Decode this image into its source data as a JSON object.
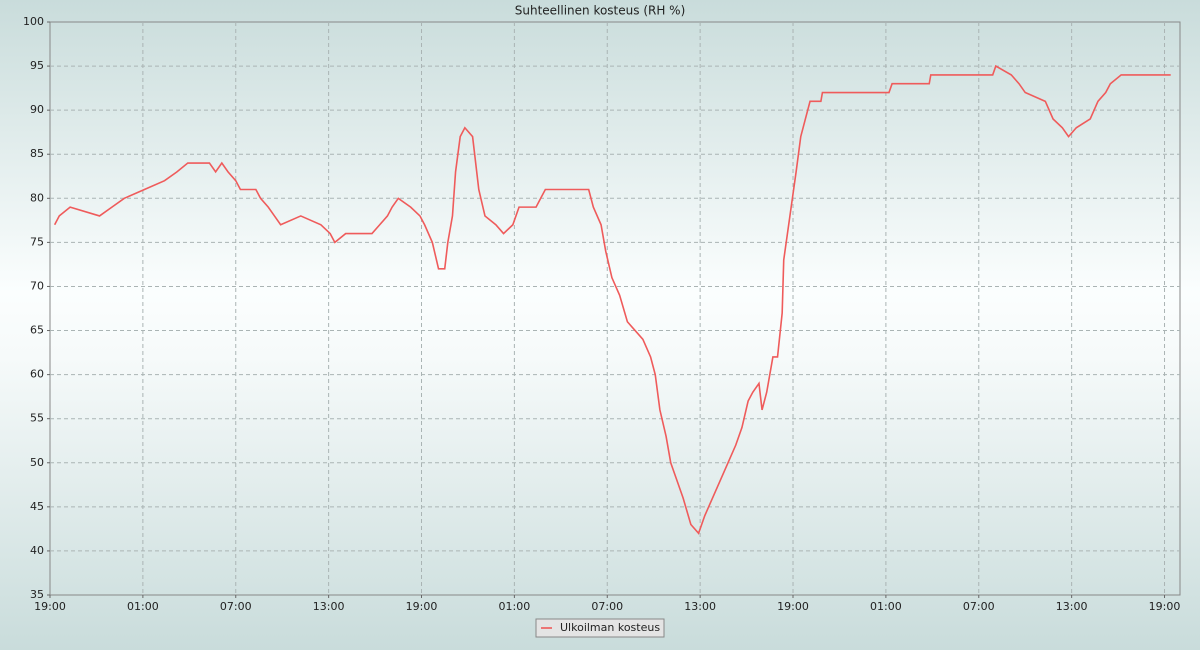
{
  "chart_data": {
    "type": "line",
    "title": "Suhteellinen kosteus (RH %)",
    "xlim": [
      0,
      73
    ],
    "ylim": [
      35,
      100
    ],
    "xticks": [
      {
        "value": 0,
        "label": "19:00"
      },
      {
        "value": 6,
        "label": "01:00"
      },
      {
        "value": 12,
        "label": "07:00"
      },
      {
        "value": 18,
        "label": "13:00"
      },
      {
        "value": 24,
        "label": "19:00"
      },
      {
        "value": 30,
        "label": "01:00"
      },
      {
        "value": 36,
        "label": "07:00"
      },
      {
        "value": 42,
        "label": "13:00"
      },
      {
        "value": 48,
        "label": "19:00"
      },
      {
        "value": 54,
        "label": "01:00"
      },
      {
        "value": 60,
        "label": "07:00"
      },
      {
        "value": 66,
        "label": "13:00"
      },
      {
        "value": 72,
        "label": "19:00"
      }
    ],
    "yticks": [
      35,
      40,
      45,
      50,
      55,
      60,
      65,
      70,
      75,
      80,
      85,
      90,
      95,
      100
    ],
    "grid": true,
    "legend": "bottom",
    "x": [
      0.3,
      0.6,
      1.3,
      3.2,
      4,
      4.8,
      6.1,
      7.4,
      8.2,
      8.9,
      10.3,
      10.7,
      11.1,
      11.5,
      12,
      12.3,
      13.3,
      13.6,
      14.1,
      14.5,
      14.9,
      16.2,
      17.5,
      18.1,
      18.4,
      19.1,
      20.8,
      21.3,
      21.8,
      22.1,
      22.5,
      23.3,
      23.9,
      24.2,
      24.7,
      25.1,
      25.5,
      25.7,
      26,
      26.2,
      26.5,
      26.8,
      27.3,
      27.7,
      28.1,
      28.8,
      29.3,
      29.9,
      30.3,
      31.4,
      31.7,
      32,
      34.8,
      35.1,
      35.6,
      35.9,
      36.3,
      36.8,
      37.3,
      37.8,
      38.3,
      38.8,
      39.1,
      39.4,
      39.8,
      40.1,
      40.5,
      40.9,
      41.4,
      41.9,
      42.3,
      42.8,
      43.3,
      43.8,
      44.3,
      44.7,
      45.1,
      45.4,
      45.8,
      46,
      46.3,
      46.7,
      47,
      47.3,
      47.4,
      47.8,
      48.2,
      48.5,
      48.8,
      49.1,
      49.8,
      49.9,
      54.2,
      54.4,
      56.8,
      56.9,
      60.9,
      61.1,
      62.1,
      62.6,
      63,
      64.3,
      64.8,
      65.4,
      65.8,
      66.3,
      67.2,
      67.7,
      68.2,
      68.5,
      69.2,
      72.4
    ],
    "series": [
      {
        "name": "Ulkoilman kosteus",
        "color": "#ef5b5b",
        "values": [
          77,
          78,
          79,
          78,
          79,
          80,
          81,
          82,
          83,
          84,
          84,
          83,
          84,
          83,
          82,
          81,
          81,
          80,
          79,
          78,
          77,
          78,
          77,
          76,
          75,
          76,
          76,
          77,
          78,
          79,
          80,
          79,
          78,
          77,
          75,
          72,
          72,
          75,
          78,
          83,
          87,
          88,
          87,
          81,
          78,
          77,
          76,
          77,
          79,
          79,
          80,
          81,
          81,
          79,
          77,
          74,
          71,
          69,
          66,
          65,
          64,
          62,
          60,
          56,
          53,
          50,
          48,
          46,
          43,
          42,
          44,
          46,
          48,
          50,
          52,
          54,
          57,
          58,
          59,
          56,
          58,
          62,
          62,
          67,
          73,
          78,
          83,
          87,
          89,
          91,
          91,
          92,
          92,
          93,
          93,
          94,
          94,
          95,
          94,
          93,
          92,
          91,
          89,
          88,
          87,
          88,
          89,
          91,
          92,
          93,
          94,
          94
        ]
      }
    ]
  }
}
